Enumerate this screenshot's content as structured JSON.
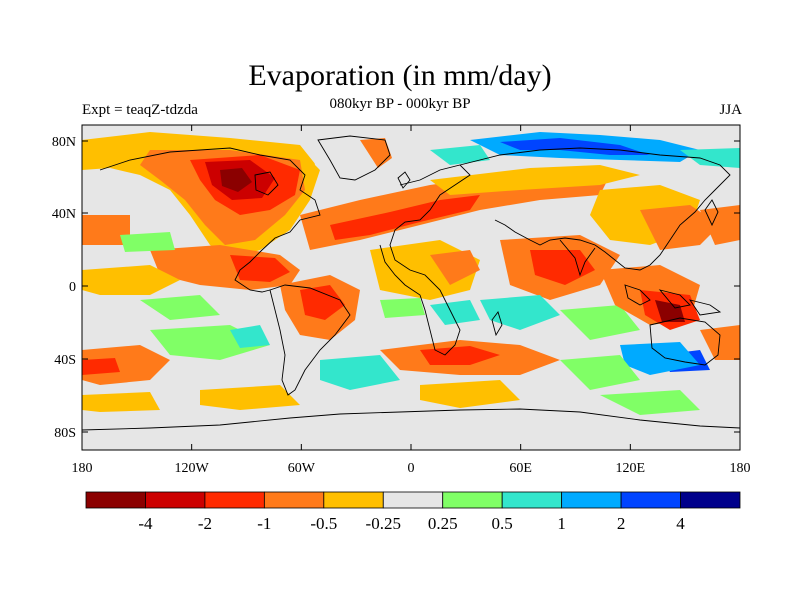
{
  "title": "Evaporation (in mm/day)",
  "subtitle_center": "080kyr BP - 000kyr BP",
  "subtitle_left": "Expt = teaqZ-tdzda",
  "subtitle_right": "JJA",
  "axes": {
    "lon_ticks": [
      "180",
      "120W",
      "60W",
      "0",
      "60E",
      "120E",
      "180"
    ],
    "lat_ticks": [
      "80N",
      "40N",
      "0",
      "40S",
      "80S"
    ]
  },
  "colorbar": {
    "colors": [
      "#8b0000",
      "#cc0000",
      "#ff2a00",
      "#ff7a1a",
      "#ffbf00",
      "#e6e6e6",
      "#80ff66",
      "#33e6cc",
      "#00aaff",
      "#0044ff",
      "#00008b"
    ],
    "labels": [
      "-4",
      "-2",
      "-1",
      "-0.5",
      "-0.25",
      "0.25",
      "0.5",
      "1",
      "2",
      "4"
    ]
  }
}
